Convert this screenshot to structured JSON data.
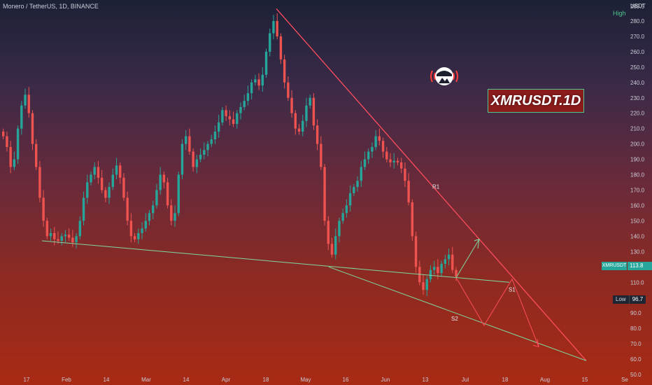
{
  "header": {
    "symbol_title": "Monero / TetherUS, 1D, BINANCE",
    "currency": "USDT",
    "high_label": "High"
  },
  "badge": {
    "text": "XMRUSDT.1D"
  },
  "price_axis": {
    "current_name": "XMRUSDT",
    "current_value": "113.8",
    "low_label": "Low",
    "low_value": "96.7"
  },
  "colors": {
    "up": "#26a69a",
    "down": "#ef5350",
    "resistance": "#ff4d5e",
    "support": "#7ed9a0"
  },
  "chart_data": {
    "type": "candlestick",
    "ylim": [
      50,
      290
    ],
    "y_ticks": [
      "50.0",
      "60.0",
      "70.0",
      "80.0",
      "90.0",
      "100.0",
      "110.0",
      "120.0",
      "130.0",
      "140.0",
      "150.0",
      "160.0",
      "170.0",
      "180.0",
      "190.0",
      "200.0",
      "210.0",
      "220.0",
      "230.0",
      "240.0",
      "250.0",
      "260.0",
      "270.0",
      "280.0",
      "289.5"
    ],
    "x_ticks": [
      "17",
      "Feb",
      "14",
      "Mar",
      "14",
      "Apr",
      "18",
      "May",
      "16",
      "Jun",
      "13",
      "Jul",
      "18",
      "Aug",
      "15",
      "Se"
    ],
    "closes": [
      205,
      198,
      185,
      190,
      210,
      225,
      232,
      220,
      200,
      185,
      165,
      150,
      140,
      142,
      138,
      137,
      140,
      141,
      139,
      136,
      140,
      150,
      165,
      175,
      180,
      185,
      178,
      170,
      165,
      172,
      180,
      186,
      178,
      165,
      150,
      140,
      138,
      142,
      145,
      150,
      155,
      160,
      170,
      180,
      175,
      160,
      150,
      155,
      180,
      200,
      205,
      195,
      185,
      190,
      193,
      196,
      200,
      203,
      208,
      214,
      222,
      218,
      216,
      213,
      220,
      224,
      228,
      233,
      240,
      242,
      238,
      245,
      260,
      272,
      280,
      270,
      255,
      240,
      230,
      220,
      210,
      208,
      215,
      225,
      230,
      212,
      200,
      185,
      150,
      135,
      128,
      140,
      150,
      155,
      160,
      168,
      172,
      176,
      185,
      190,
      195,
      198,
      205,
      202,
      195,
      190,
      188,
      189,
      188,
      184,
      176,
      162,
      140,
      120,
      110,
      105,
      112,
      118,
      120,
      116,
      122,
      125,
      128,
      118,
      113.8
    ],
    "lines": [
      {
        "label": "R1"
      },
      {
        "label": "S1"
      },
      {
        "label": "S2"
      }
    ]
  }
}
